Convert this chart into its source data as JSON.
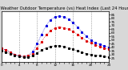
{
  "title": "Milwaukee Weather Outdoor Temperature (vs) Heat Index (Last 24 Hours)",
  "bg_color": "#d8d8d8",
  "plot_bg": "#ffffff",
  "ylim": [
    20,
    90
  ],
  "xlim": [
    0,
    24
  ],
  "x_hours": [
    0,
    1,
    2,
    3,
    4,
    5,
    6,
    7,
    8,
    9,
    10,
    11,
    12,
    13,
    14,
    15,
    16,
    17,
    18,
    19,
    20,
    21,
    22,
    23,
    24
  ],
  "temp_data": [
    38,
    36,
    33,
    30,
    28,
    27,
    28,
    31,
    39,
    48,
    57,
    63,
    67,
    68,
    67,
    65,
    62,
    58,
    53,
    49,
    46,
    43,
    41,
    39,
    37
  ],
  "heat_data": [
    38,
    36,
    33,
    30,
    28,
    27,
    28,
    34,
    45,
    58,
    70,
    78,
    82,
    83,
    82,
    79,
    74,
    68,
    61,
    55,
    50,
    46,
    44,
    42,
    40
  ],
  "dew_data": [
    35,
    33,
    31,
    29,
    27,
    26,
    26,
    28,
    32,
    36,
    39,
    41,
    42,
    42,
    41,
    39,
    37,
    35,
    33,
    31,
    30,
    29,
    28,
    27,
    26
  ],
  "temp_color": "#dd0000",
  "heat_color": "#0000dd",
  "dew_color": "#000000",
  "grid_color": "#999999",
  "vgrid_x": [
    4,
    8,
    12,
    16,
    20
  ],
  "title_fontsize": 3.8,
  "tick_fontsize": 3.0,
  "ytick_vals": [
    25,
    30,
    35,
    40,
    45,
    50,
    55,
    60,
    65,
    70,
    75,
    80,
    85
  ],
  "xtick_labels": [
    "0",
    "",
    "",
    "",
    "4",
    "",
    "",
    "",
    "8",
    "",
    "",
    "",
    "12",
    "",
    "",
    "",
    "16",
    "",
    "",
    "",
    "20",
    "",
    "",
    "",
    "24"
  ]
}
